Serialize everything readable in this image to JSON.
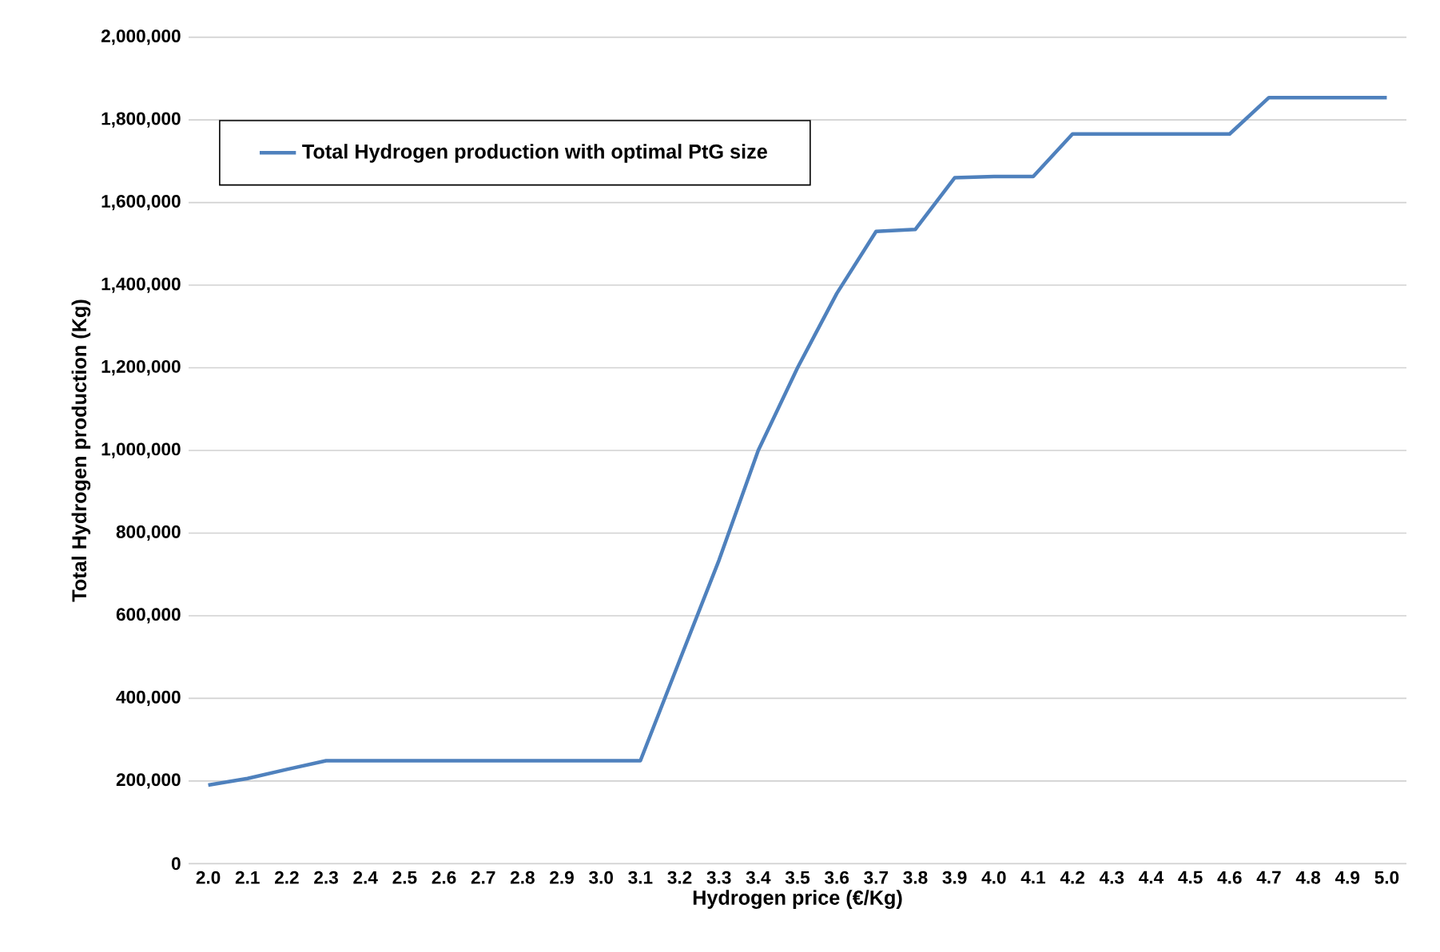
{
  "chart_data": {
    "type": "line",
    "xlabel": "Hydrogen price (€/Kg)",
    "ylabel": "Total Hydrogen production (Kg)",
    "categories": [
      "2.0",
      "2.1",
      "2.2",
      "2.3",
      "2.4",
      "2.5",
      "2.6",
      "2.7",
      "2.8",
      "2.9",
      "3.0",
      "3.1",
      "3.2",
      "3.3",
      "3.4",
      "3.5",
      "3.6",
      "3.7",
      "3.8",
      "3.9",
      "4.0",
      "4.1",
      "4.2",
      "4.3",
      "4.4",
      "4.5",
      "4.6",
      "4.7",
      "4.8",
      "4.9",
      "5.0"
    ],
    "series": [
      {
        "name": "Total Hydrogen production with optimal PtG size",
        "color": "#4f81bd",
        "values": [
          190000,
          206000,
          228000,
          249000,
          249000,
          249000,
          249000,
          249000,
          249000,
          249000,
          249000,
          249000,
          492000,
          734000,
          1000000,
          1200000,
          1380000,
          1530000,
          1535000,
          1660000,
          1663000,
          1663000,
          1766000,
          1766000,
          1766000,
          1766000,
          1766000,
          1854000,
          1854000,
          1854000,
          1854000
        ]
      }
    ],
    "ylim": [
      0,
      2000000
    ],
    "yticks": [
      {
        "value": 0,
        "label": "0"
      },
      {
        "value": 200000,
        "label": "200,000"
      },
      {
        "value": 400000,
        "label": "400,000"
      },
      {
        "value": 600000,
        "label": "600,000"
      },
      {
        "value": 800000,
        "label": "800,000"
      },
      {
        "value": 1000000,
        "label": "1,000,000"
      },
      {
        "value": 1200000,
        "label": "1,200,000"
      },
      {
        "value": 1400000,
        "label": "1,400,000"
      },
      {
        "value": 1600000,
        "label": "1,600,000"
      },
      {
        "value": 1800000,
        "label": "1,800,000"
      },
      {
        "value": 2000000,
        "label": "2,000,000"
      }
    ],
    "grid": "y",
    "legend": "top left",
    "marker": "none",
    "line_style": "solid"
  }
}
